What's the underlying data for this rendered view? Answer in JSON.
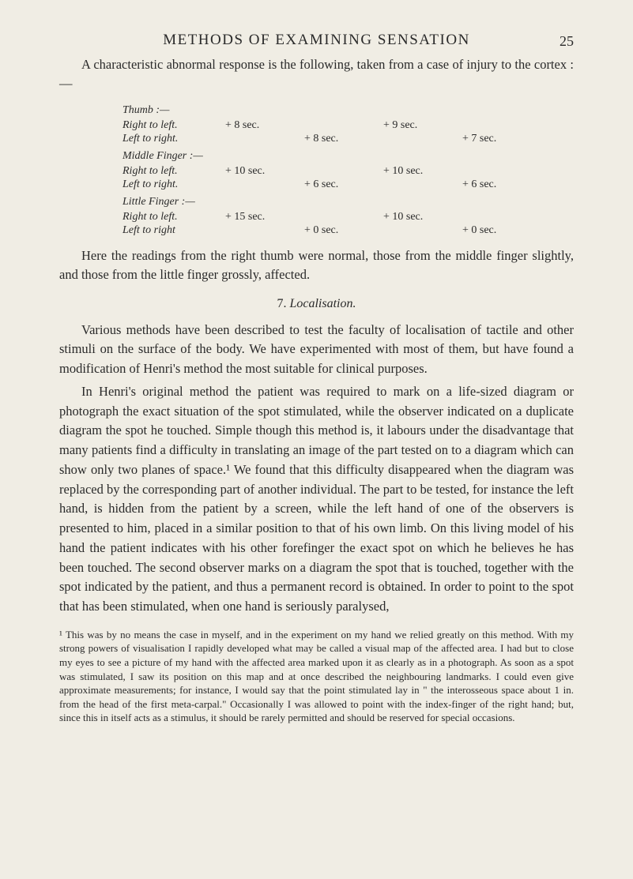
{
  "header": {
    "title": "METHODS OF EXAMINING SENSATION",
    "page_number": "25"
  },
  "intro": "A characteristic abnormal response is the following, taken from a case of injury to the cortex :—",
  "measurements": {
    "groups": [
      {
        "heading": "Thumb :—",
        "rows": [
          {
            "label": "Right to left.",
            "c1": "+ 8 sec.",
            "c2": "",
            "c3": "+ 9 sec.",
            "c4": ""
          },
          {
            "label": "Left to right.",
            "c1": "",
            "c2": "+ 8 sec.",
            "c3": "",
            "c4": "+ 7 sec."
          }
        ]
      },
      {
        "heading": "Middle Finger :—",
        "rows": [
          {
            "label": "Right to left.",
            "c1": "+ 10 sec.",
            "c2": "",
            "c3": "+ 10 sec.",
            "c4": ""
          },
          {
            "label": "Left to right.",
            "c1": "",
            "c2": "+ 6 sec.",
            "c3": "",
            "c4": "+ 6 sec."
          }
        ]
      },
      {
        "heading": "Little Finger :—",
        "rows": [
          {
            "label": "Right to left.",
            "c1": "+ 15 sec.",
            "c2": "",
            "c3": "+ 10 sec.",
            "c4": ""
          },
          {
            "label": "Left to right",
            "c1": "",
            "c2": "+ 0 sec.",
            "c3": "",
            "c4": "+ 0 sec."
          }
        ]
      }
    ]
  },
  "after_table": "Here the readings from the right thumb were normal, those from the middle finger slightly, and those from the little finger grossly, affected.",
  "section": {
    "number": "7.",
    "title": "Localisation."
  },
  "paras": {
    "p1": "Various methods have been described to test the faculty of localisation of tactile and other stimuli on the surface of the body. We have experimented with most of them, but have found a modification of Henri's method the most suitable for clinical purposes.",
    "p2": "In Henri's original method the patient was required to mark on a life-sized diagram or photograph the exact situation of the spot stimulated, while the observer indicated on a duplicate diagram the spot he touched. Simple though this method is, it labours under the disadvantage that many patients find a difficulty in translating an image of the part tested on to a diagram which can show only two planes of space.¹ We found that this difficulty disappeared when the diagram was replaced by the corresponding part of another individual. The part to be tested, for instance the left hand, is hidden from the patient by a screen, while the left hand of one of the observers is presented to him, placed in a similar position to that of his own limb. On this living model of his hand the patient indicates with his other forefinger the exact spot on which he believes he has been touched. The second observer marks on a diagram the spot that is touched, together with the spot indicated by the patient, and thus a permanent record is obtained. In order to point to the spot that has been stimulated, when one hand is seriously paralysed,"
  },
  "footnote": "¹ This was by no means the case in myself, and in the experiment on my hand we relied greatly on this method. With my strong powers of visualisation I rapidly developed what may be called a visual map of the affected area. I had but to close my eyes to see a picture of my hand with the affected area marked upon it as clearly as in a photograph. As soon as a spot was stimulated, I saw its position on this map and at once described the neighbouring landmarks. I could even give approximate measurements; for instance, I would say that the point stimulated lay in \" the interosseous space about 1 in. from the head of the first meta-carpal.\" Occasionally I was allowed to point with the index-finger of the right hand; but, since this in itself acts as a stimulus, it should be rarely permitted and should be reserved for special occasions."
}
